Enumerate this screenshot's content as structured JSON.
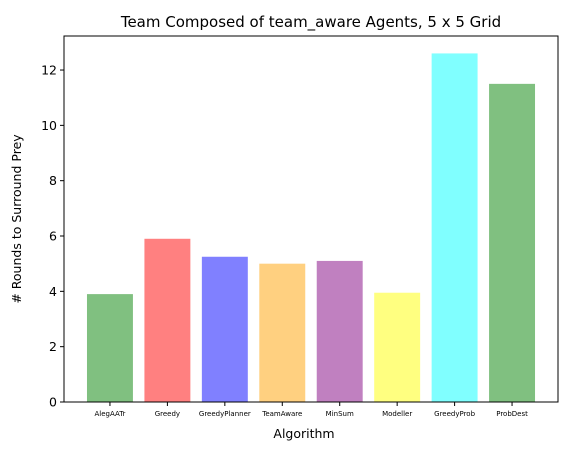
{
  "chart_data": {
    "type": "bar",
    "title": "Team Composed of team_aware Agents, 5 x 5 Grid",
    "xlabel": "Algorithm",
    "ylabel": "# Rounds to Surround Prey",
    "categories": [
      "AlegAATr",
      "Greedy",
      "GreedyPlanner",
      "TeamAware",
      "MinSum",
      "Modeller",
      "GreedyProb",
      "ProbDest"
    ],
    "values": [
      3.9,
      5.9,
      5.25,
      5.0,
      5.1,
      3.95,
      12.6,
      11.5
    ],
    "colors": [
      "#80c080",
      "#ff8080",
      "#8080ff",
      "#ffd080",
      "#c080c0",
      "#ffff80",
      "#80ffff",
      "#80c080"
    ],
    "ylim": [
      0,
      13.23
    ],
    "yticks": [
      0,
      2,
      4,
      6,
      8,
      10,
      12
    ],
    "grid": false,
    "legend": "none"
  }
}
